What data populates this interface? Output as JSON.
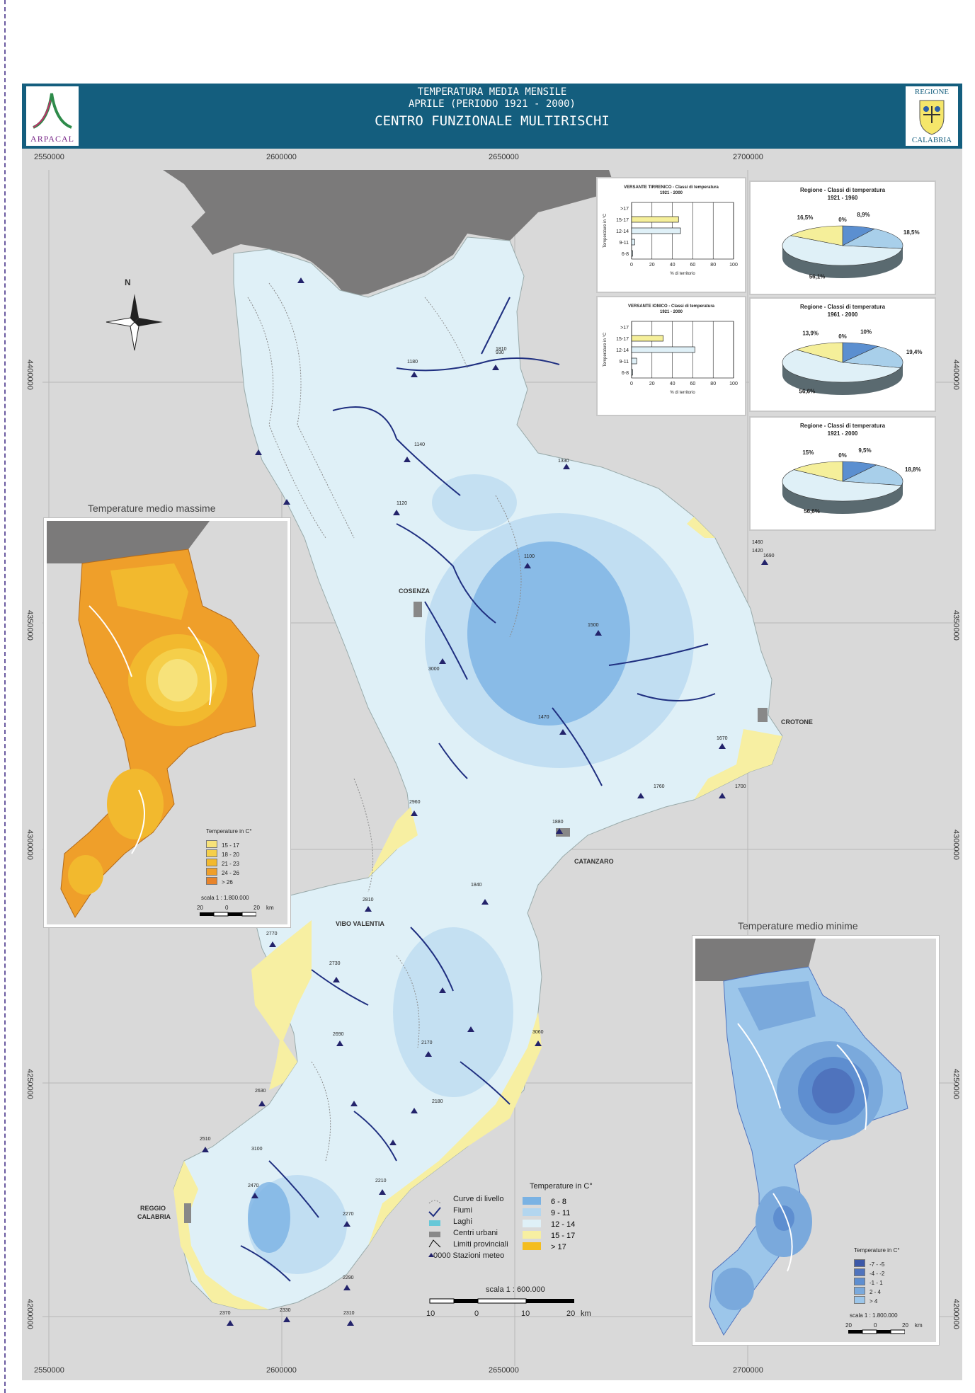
{
  "header": {
    "title_line1": "TEMPERATURA MEDIA MENSILE",
    "title_line2": "APRILE (PERIODO 1921 - 2000)",
    "title_line3": "CENTRO FUNZIONALE MULTIRISCHI",
    "logo_left_text": "ARPACAL",
    "logo_right_top": "REGIONE",
    "logo_right_bottom": "CALABRIA"
  },
  "axes": {
    "x_top": [
      "2550000",
      "2600000",
      "2650000",
      "2700000"
    ],
    "x_bottom": [
      "2550000",
      "2600000",
      "2650000",
      "2700000"
    ],
    "y_left": [
      "4400000",
      "4350000",
      "4300000",
      "4250000",
      "4200000"
    ],
    "y_right": [
      "4400000",
      "4350000",
      "4300000",
      "4250000",
      "4200000"
    ]
  },
  "places": {
    "cosenza": "COSENZA",
    "crotone": "CROTONE",
    "catanzaro": "CATANZARO",
    "vibo": "VIBO VALENTIA",
    "reggio_1": "REGGIO",
    "reggio_2": "CALABRIA"
  },
  "north": "N",
  "chart_data": [
    {
      "type": "bar",
      "title": "VERSANTE TIRRENICO - Classi di temperatura",
      "subtitle": "1921 - 2000",
      "ylabel": "Temperature in °C",
      "xlabel": "% di territorio",
      "categories": [
        ">17",
        "15-17",
        "12-14",
        "9-11",
        "6-8"
      ],
      "values": [
        0,
        46,
        48,
        3,
        1
      ],
      "xlim": [
        0,
        100
      ],
      "xticks": [
        "0",
        "20",
        "40",
        "60",
        "80",
        "100"
      ]
    },
    {
      "type": "bar",
      "title": "VERSANTE IONICO - Classi di temperatura",
      "subtitle": "1921 - 2000",
      "ylabel": "Temperature in °C",
      "xlabel": "% di territorio",
      "categories": [
        ">17",
        "15-17",
        "12-14",
        "9-11",
        "6-8"
      ],
      "values": [
        0,
        31,
        62,
        5,
        1
      ],
      "xlim": [
        0,
        100
      ],
      "xticks": [
        "0",
        "20",
        "40",
        "60",
        "80",
        "100"
      ]
    },
    {
      "type": "pie",
      "title": "Regione - Classi di temperatura",
      "subtitle": "1921 - 1960",
      "labels": [
        "8,9%",
        "18,5%",
        "56,1%",
        "16,5%",
        "0%"
      ],
      "values": [
        8.9,
        18.5,
        56.1,
        16.5,
        0
      ]
    },
    {
      "type": "pie",
      "title": "Regione - Classi di temperatura",
      "subtitle": "1961 - 2000",
      "labels": [
        "10%",
        "19,4%",
        "56,6%",
        "13,9%",
        "0%"
      ],
      "values": [
        10,
        19.4,
        56.6,
        13.9,
        0
      ]
    },
    {
      "type": "pie",
      "title": "Regione - Classi di temperatura",
      "subtitle": "1921 - 2000",
      "labels": [
        "9,5%",
        "18,8%",
        "56,6%",
        "15%",
        "0%"
      ],
      "values": [
        9.5,
        18.8,
        56.6,
        15,
        0
      ]
    }
  ],
  "pie_colors": [
    "#5b8fd0",
    "#a8cfea",
    "#dff0f7",
    "#f5ef9a",
    "#f0b83a"
  ],
  "bar_colors": [
    "#f5ef9a",
    "#dff0f7"
  ],
  "inset_max": {
    "title": "Temperature medio massime",
    "legend_title": "Temperature in C°",
    "items": [
      {
        "label": "15 - 17",
        "color": "#f7e27a"
      },
      {
        "label": "18 - 20",
        "color": "#f5cf4a"
      },
      {
        "label": "21 - 23",
        "color": "#f2b92e"
      },
      {
        "label": "24 - 26",
        "color": "#ef9f2a"
      },
      {
        "label": "> 26",
        "color": "#e8842a"
      }
    ],
    "scale": "scala 1 : 1.800.000",
    "scale_ticks": [
      "20",
      "0",
      "20",
      "km"
    ]
  },
  "inset_min": {
    "title": "Temperature medio minime",
    "legend_title": "Temperature in C°",
    "items": [
      {
        "label": "-7 - -5",
        "color": "#3c58a8"
      },
      {
        "label": "-4 - -2",
        "color": "#4f73bd"
      },
      {
        "label": "-1 - 1",
        "color": "#5e8ed0"
      },
      {
        "label": "2 - 4",
        "color": "#7aa9dc"
      },
      {
        "label": "> 4",
        "color": "#9cc6ea"
      }
    ],
    "scale": "scala 1 : 1.800.000",
    "scale_ticks": [
      "20",
      "0",
      "20",
      "km"
    ]
  },
  "legend_main": {
    "symbols": [
      {
        "label": "Curve di livello"
      },
      {
        "label": "Fiumi"
      },
      {
        "label": "Laghi"
      },
      {
        "label": "Centri urbani"
      },
      {
        "label": "Limiti provinciali"
      },
      {
        "label": "0000 Stazioni meteo"
      }
    ],
    "temp_title": "Temperature in C°",
    "temp_items": [
      {
        "label": "6 - 8",
        "color": "#7ab2e3"
      },
      {
        "label": "9 - 11",
        "color": "#b3d6ef"
      },
      {
        "label": "12 - 14",
        "color": "#dff0f7"
      },
      {
        "label": "15 - 17",
        "color": "#f7efa2"
      },
      {
        "label": "> 17",
        "color": "#f4bd1e"
      }
    ],
    "scale": "scala 1 : 600.000",
    "scale_ticks": [
      "10",
      "0",
      "10",
      "20",
      "km"
    ]
  },
  "station_labels": [
    {
      "t": "1330"
    },
    {
      "t": "1460"
    },
    {
      "t": "1420"
    },
    {
      "t": "1690"
    },
    {
      "t": "1670"
    },
    {
      "t": "1760"
    },
    {
      "t": "1700"
    },
    {
      "t": "2960"
    },
    {
      "t": "1880"
    },
    {
      "t": "1840"
    },
    {
      "t": "2810"
    },
    {
      "t": "2770"
    },
    {
      "t": "2730"
    },
    {
      "t": "2690"
    },
    {
      "t": "2630"
    },
    {
      "t": "2510"
    },
    {
      "t": "2470"
    },
    {
      "t": "2370"
    },
    {
      "t": "2330"
    },
    {
      "t": "2310"
    },
    {
      "t": "2290"
    },
    {
      "t": "2270"
    },
    {
      "t": "2210"
    },
    {
      "t": "2180"
    },
    {
      "t": "2170"
    },
    {
      "t": "3060"
    },
    {
      "t": "3100"
    },
    {
      "t": "3000"
    },
    {
      "t": "1180"
    },
    {
      "t": "1140"
    },
    {
      "t": "1120"
    },
    {
      "t": "1100"
    },
    {
      "t": "1500"
    },
    {
      "t": "1470"
    },
    {
      "t": "1810"
    },
    {
      "t": "930"
    }
  ]
}
